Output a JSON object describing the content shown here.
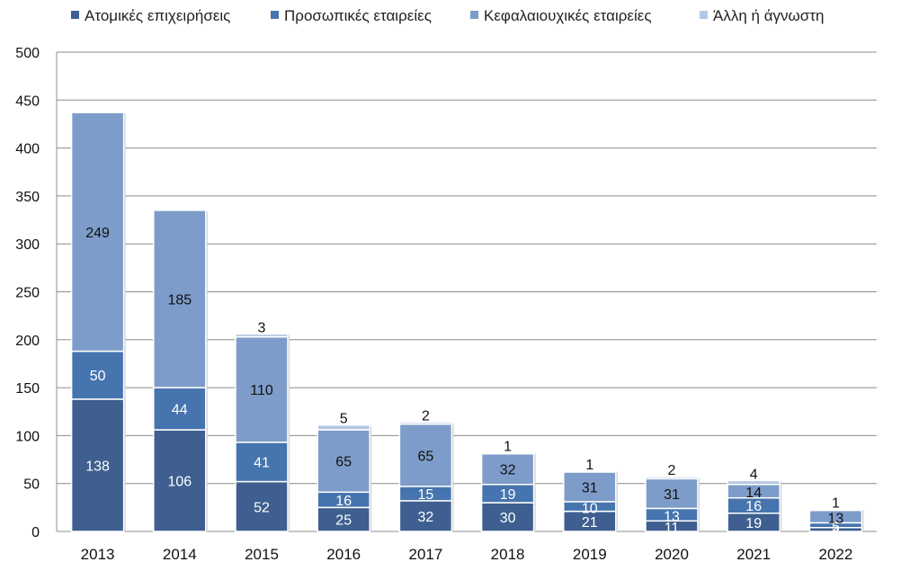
{
  "chart_data": {
    "type": "bar",
    "stacked": true,
    "title": "",
    "xlabel": "",
    "ylabel": "",
    "ylim": [
      0,
      500
    ],
    "yticks": [
      0,
      50,
      100,
      150,
      200,
      250,
      300,
      350,
      400,
      450,
      500
    ],
    "grid": true,
    "legend_position": "top",
    "categories": [
      "2013",
      "2014",
      "2015",
      "2016",
      "2017",
      "2018",
      "2019",
      "2020",
      "2021",
      "2022"
    ],
    "series": [
      {
        "name": "Ατομικές επιχειρήσεις",
        "color": "#3e5f8f",
        "label_color": "#ffffff",
        "values": [
          138,
          106,
          52,
          25,
          32,
          30,
          21,
          11,
          19,
          4
        ]
      },
      {
        "name": "Προσωπικές εταιρείες",
        "color": "#4674ae",
        "label_color": "#ffffff",
        "values": [
          50,
          44,
          41,
          16,
          15,
          19,
          10,
          13,
          16,
          5
        ]
      },
      {
        "name": "Κεφαλαιουχικές εταιρείες",
        "color": "#7d9cc9",
        "label_color": "#111111",
        "values": [
          249,
          185,
          110,
          65,
          65,
          32,
          31,
          31,
          14,
          13
        ]
      },
      {
        "name": "Άλλη ή άγνωστη",
        "color": "#b4c6e2",
        "label_color": "#111111",
        "values": [
          0,
          0,
          3,
          5,
          2,
          1,
          1,
          2,
          4,
          1
        ]
      }
    ]
  }
}
